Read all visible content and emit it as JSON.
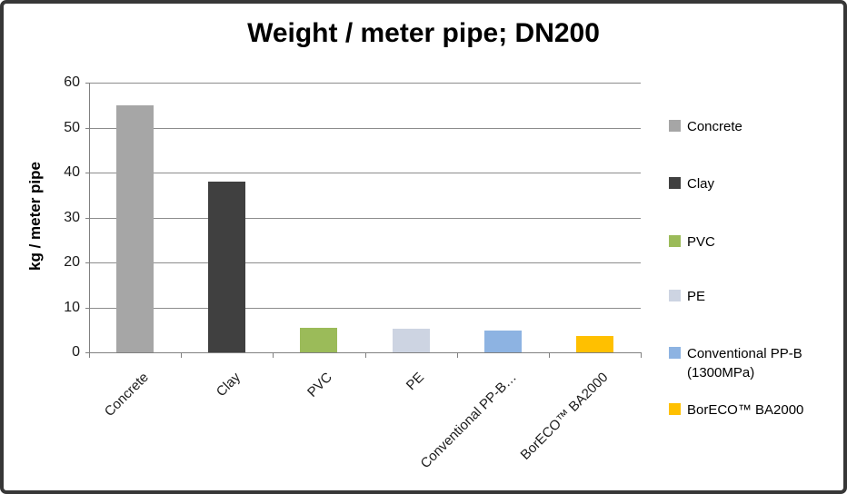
{
  "chart_data": {
    "type": "bar",
    "title": "Weight / meter pipe; DN200",
    "ylabel": "kg / meter pipe",
    "xlabel": "",
    "ylim": [
      0,
      60
    ],
    "yticks": [
      0,
      10,
      20,
      30,
      40,
      50,
      60
    ],
    "grid": true,
    "legend_position": "right",
    "x_tick_labels": [
      "Concrete",
      "Clay",
      "PVC",
      "PE",
      "Conventional PP-B…",
      "BorECO™ BA2000"
    ],
    "series": [
      {
        "name": "Concrete",
        "value": 55,
        "color": "#a6a6a6"
      },
      {
        "name": "Clay",
        "value": 38,
        "color": "#404040"
      },
      {
        "name": "PVC",
        "value": 5.5,
        "color": "#9bbb59"
      },
      {
        "name": "PE",
        "value": 5.3,
        "color": "#cdd4e2"
      },
      {
        "name": "Conventional PP-B (1300MPa)",
        "value": 4.8,
        "color": "#8db3e2"
      },
      {
        "name": "BorECO™ BA2000",
        "value": 3.7,
        "color": "#ffc000"
      }
    ],
    "colors": {
      "axis": "#808080",
      "gridline": "#8c8c8c",
      "text": "#000000"
    }
  }
}
